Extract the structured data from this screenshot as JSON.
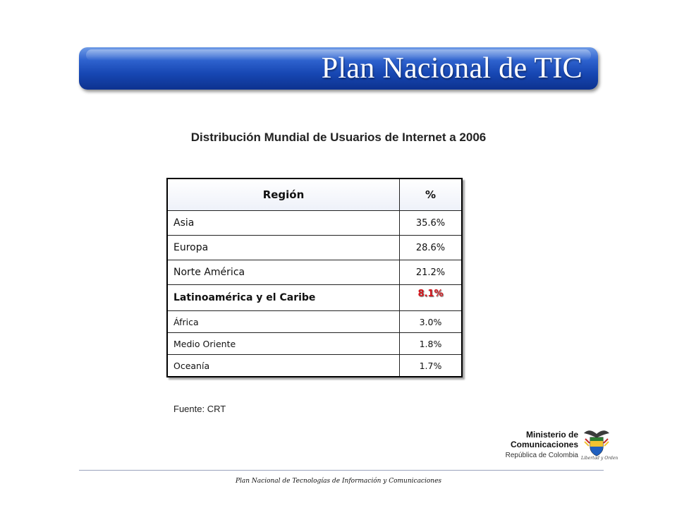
{
  "banner": {
    "title": "Plan Nacional de TIC"
  },
  "chart_title": "Distribución Mundial de Usuarios de Internet a 2006",
  "table": {
    "headers": [
      "Región",
      "%"
    ],
    "rows": [
      {
        "region": "Asia",
        "percent": "35.6%"
      },
      {
        "region": "Europa",
        "percent": "28.6%"
      },
      {
        "region": "Norte América",
        "percent": "21.2%"
      },
      {
        "region": "Latinoamérica y el Caribe",
        "percent": "8.1%"
      },
      {
        "region": "África",
        "percent": "3.0%"
      },
      {
        "region": "Medio Oriente",
        "percent": "1.8%"
      },
      {
        "region": "Oceanía",
        "percent": "1.7%"
      }
    ],
    "highlight_color": "#d4141b"
  },
  "source": "Fuente: CRT",
  "logo": {
    "line1": "Ministerio de",
    "line2": "Comunicaciones",
    "line3": "República de Colombia",
    "seal_icon": "colombia-coat-of-arms-icon",
    "seal_caption": "Libertad y Orden"
  },
  "footer": "Plan Nacional de Tecnologías de Información y Comunicaciones",
  "colors": {
    "banner_blue": "#1747b3",
    "text": "#111111"
  }
}
